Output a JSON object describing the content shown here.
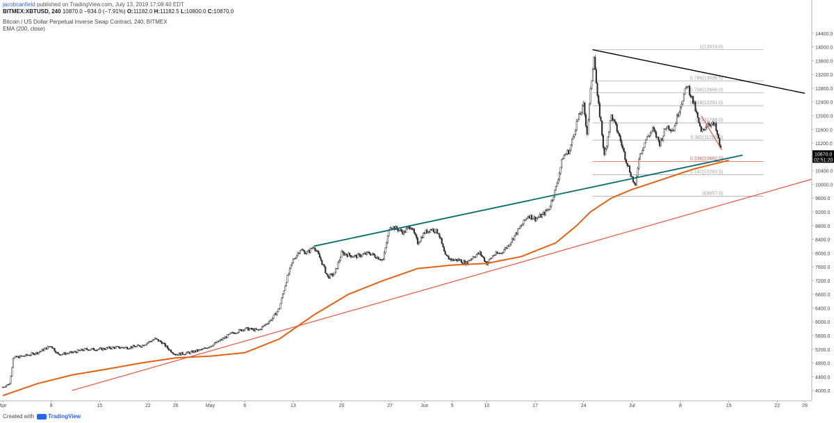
{
  "header": {
    "user": "jacobcanfield",
    "published": "published on TradingView.com, July 13, 2019 17:08:40 EDT",
    "symbol": "BITMEX:XBTUSD, 240",
    "last": "10870.0",
    "change": "−934.0 (−7.91%)",
    "open_label": "O:",
    "open": "11182.0",
    "high_label": "H:",
    "high": "11182.5",
    "low_label": "L:",
    "low": "10800.0",
    "close_label": "C:",
    "close": "10870.0",
    "instrument": "Bitcoin / US Dollar Perpetual Inverse Swap Contract, 240, BITMEX",
    "indicator": "EMA (200, close)"
  },
  "footer": {
    "created_with": "Created with",
    "brand": "TradingView"
  },
  "price_badge": {
    "price": "10870.0",
    "countdown": "02:51:20"
  },
  "colors": {
    "ema": "#e8600c",
    "support_line": "#f0513a",
    "channel_line": "#006d6a",
    "resistance_line": "#000000",
    "fib_line": "#9e9e9e",
    "fib_highlight": "#f0513a",
    "candle": "#2b2b2b",
    "badge": "#000000"
  },
  "chart_data": {
    "type": "candlestick",
    "title": "Bitcoin / US Dollar Perpetual Inverse Swap Contract, 240, BITMEX",
    "xlabel": "",
    "ylabel": "",
    "ylim": [
      3700,
      14800
    ],
    "y_ticks": [
      4000,
      4400,
      4800,
      5200,
      5600,
      6000,
      6400,
      6800,
      7200,
      7600,
      8000,
      8400,
      8800,
      9200,
      9600,
      10000,
      10400,
      10800,
      11200,
      11600,
      12000,
      12400,
      12800,
      13200,
      13600,
      14000,
      14400
    ],
    "x_ticks": [
      {
        "label": "Apr",
        "day": 0
      },
      {
        "label": "8",
        "day": 7
      },
      {
        "label": "15",
        "day": 14
      },
      {
        "label": "22",
        "day": 21
      },
      {
        "label": "26",
        "day": 25
      },
      {
        "label": "May",
        "day": 30
      },
      {
        "label": "6",
        "day": 35
      },
      {
        "label": "13",
        "day": 42
      },
      {
        "label": "20",
        "day": 49
      },
      {
        "label": "27",
        "day": 56
      },
      {
        "label": "Jun",
        "day": 61
      },
      {
        "label": "5",
        "day": 65
      },
      {
        "label": "10",
        "day": 70
      },
      {
        "label": "17",
        "day": 77
      },
      {
        "label": "24",
        "day": 84
      },
      {
        "label": "Jul",
        "day": 91
      },
      {
        "label": "8",
        "day": 98
      },
      {
        "label": "15",
        "day": 105
      },
      {
        "label": "22",
        "day": 112
      },
      {
        "label": "29",
        "day": 116
      }
    ],
    "x_domain_days": [
      0,
      117
    ],
    "price_path": [
      [
        0,
        4100
      ],
      [
        1,
        4200
      ],
      [
        1.5,
        4950
      ],
      [
        3,
        5000
      ],
      [
        5,
        5100
      ],
      [
        7,
        5300
      ],
      [
        8,
        5050
      ],
      [
        10,
        5100
      ],
      [
        12,
        5200
      ],
      [
        14,
        5200
      ],
      [
        16,
        5250
      ],
      [
        18,
        5250
      ],
      [
        20,
        5300
      ],
      [
        22,
        5500
      ],
      [
        23,
        5400
      ],
      [
        24,
        5200
      ],
      [
        25,
        5050
      ],
      [
        27,
        5100
      ],
      [
        29,
        5200
      ],
      [
        31,
        5400
      ],
      [
        33,
        5650
      ],
      [
        35,
        5800
      ],
      [
        37,
        5750
      ],
      [
        39,
        6100
      ],
      [
        40,
        6400
      ],
      [
        41,
        7200
      ],
      [
        42,
        7800
      ],
      [
        43,
        8100
      ],
      [
        44,
        8000
      ],
      [
        45,
        8200
      ],
      [
        46,
        7800
      ],
      [
        47,
        7300
      ],
      [
        48,
        7400
      ],
      [
        49,
        8000
      ],
      [
        51,
        7900
      ],
      [
        53,
        8000
      ],
      [
        55,
        7800
      ],
      [
        56,
        8800
      ],
      [
        57,
        8700
      ],
      [
        58,
        8600
      ],
      [
        59,
        8800
      ],
      [
        60,
        8300
      ],
      [
        61,
        8600
      ],
      [
        62,
        8700
      ],
      [
        63,
        8600
      ],
      [
        64,
        7900
      ],
      [
        65,
        7800
      ],
      [
        66,
        7800
      ],
      [
        67,
        7700
      ],
      [
        68,
        7900
      ],
      [
        69,
        8000
      ],
      [
        70,
        7700
      ],
      [
        71,
        7950
      ],
      [
        72,
        8000
      ],
      [
        73,
        8200
      ],
      [
        74,
        8500
      ],
      [
        75,
        8800
      ],
      [
        76,
        9100
      ],
      [
        77,
        9000
      ],
      [
        78,
        9100
      ],
      [
        79,
        9300
      ],
      [
        80,
        9900
      ],
      [
        81,
        10800
      ],
      [
        82,
        11000
      ],
      [
        83,
        11800
      ],
      [
        84,
        12300
      ],
      [
        84.5,
        11500
      ],
      [
        85,
        12700
      ],
      [
        85.5,
        13800
      ],
      [
        86,
        12500
      ],
      [
        86.5,
        11800
      ],
      [
        87,
        10800
      ],
      [
        88,
        12000
      ],
      [
        89,
        11500
      ],
      [
        90,
        10800
      ],
      [
        91,
        10200
      ],
      [
        91.5,
        9900
      ],
      [
        92,
        10800
      ],
      [
        93,
        11300
      ],
      [
        94,
        11600
      ],
      [
        95,
        11200
      ],
      [
        96,
        11700
      ],
      [
        97,
        11600
      ],
      [
        98,
        12300
      ],
      [
        99,
        12900
      ],
      [
        100,
        12300
      ],
      [
        101,
        11500
      ],
      [
        102,
        11800
      ],
      [
        103,
        11700
      ],
      [
        104,
        10870
      ]
    ],
    "series": [
      {
        "name": "EMA (200, close)",
        "points": [
          [
            0,
            3850
          ],
          [
            5,
            4200
          ],
          [
            10,
            4450
          ],
          [
            15,
            4620
          ],
          [
            20,
            4800
          ],
          [
            25,
            4950
          ],
          [
            30,
            5000
          ],
          [
            35,
            5100
          ],
          [
            40,
            5500
          ],
          [
            45,
            6200
          ],
          [
            50,
            6800
          ],
          [
            55,
            7200
          ],
          [
            60,
            7550
          ],
          [
            65,
            7650
          ],
          [
            70,
            7700
          ],
          [
            75,
            7900
          ],
          [
            80,
            8300
          ],
          [
            83,
            8800
          ],
          [
            85,
            9200
          ],
          [
            88,
            9600
          ],
          [
            91,
            9850
          ],
          [
            94,
            10050
          ],
          [
            97,
            10250
          ],
          [
            100,
            10450
          ],
          [
            103,
            10600
          ],
          [
            105,
            10700
          ]
        ]
      }
    ],
    "trendlines": [
      {
        "name": "channel",
        "from": [
          45,
          8200
        ],
        "to": [
          107,
          10850
        ]
      },
      {
        "name": "support",
        "from": [
          10,
          4000
        ],
        "to": [
          117,
          10150
        ]
      },
      {
        "name": "resistance",
        "from": [
          85.3,
          13919
        ],
        "to": [
          116,
          12650
        ]
      },
      {
        "name": "pullback",
        "from": [
          101,
          12000
        ],
        "to": [
          104,
          11000
        ]
      }
    ],
    "fib_retracement": {
      "from_day": 85.3,
      "to_day": 110,
      "levels": [
        {
          "label": "1(13919.0)",
          "value": 13919.0
        },
        {
          "label": "0.786(13006.5)",
          "value": 13006.5
        },
        {
          "label": "0.706(12666.0)",
          "value": 12666.0
        },
        {
          "label": "0.618(12291.0)",
          "value": 12291.0
        },
        {
          "label": "0.5(11788.0)",
          "value": 11788.0
        },
        {
          "label": "0.382(11285.0)",
          "value": 11285.0
        },
        {
          "label": "0.236(10662.5)",
          "value": 10662.5
        },
        {
          "label": "0.147(10283.5)",
          "value": 10283.5
        },
        {
          "label": "0(9657.0)",
          "value": 9657.0
        }
      ]
    }
  }
}
